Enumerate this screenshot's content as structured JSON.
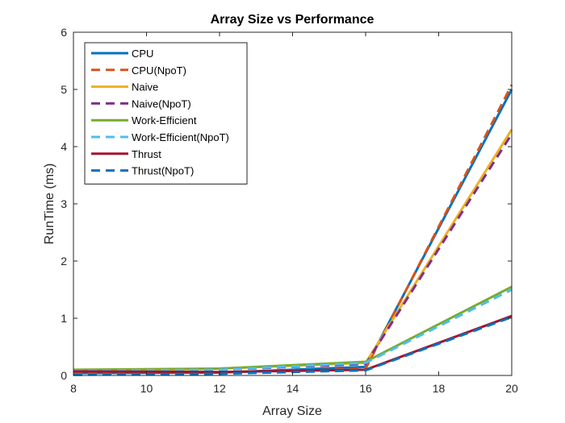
{
  "chart_data": {
    "type": "line",
    "title": "Array Size vs Performance",
    "xlabel": "Array Size",
    "ylabel": "RunTime (ms)",
    "xlim": [
      8,
      20
    ],
    "ylim": [
      0,
      6
    ],
    "xticks": [
      8,
      10,
      12,
      14,
      16,
      18,
      20
    ],
    "yticks": [
      0,
      1,
      2,
      3,
      4,
      5,
      6
    ],
    "grid": false,
    "legend_position": "top-left",
    "x": [
      8,
      12,
      16,
      20
    ],
    "series": [
      {
        "name": "CPU",
        "color": "#0072BD",
        "dash": "solid",
        "values": [
          0.04,
          0.05,
          0.15,
          5.0
        ]
      },
      {
        "name": "CPU(NpoT)",
        "color": "#D95319",
        "dash": "dashed",
        "values": [
          0.03,
          0.04,
          0.12,
          5.08
        ]
      },
      {
        "name": "Naive",
        "color": "#EDB120",
        "dash": "solid",
        "values": [
          0.08,
          0.12,
          0.22,
          4.3
        ]
      },
      {
        "name": "Naive(NpoT)",
        "color": "#7E2F8E",
        "dash": "dashed",
        "values": [
          0.07,
          0.1,
          0.2,
          4.22
        ]
      },
      {
        "name": "Work-Efficient",
        "color": "#77AC30",
        "dash": "solid",
        "values": [
          0.1,
          0.12,
          0.24,
          1.55
        ]
      },
      {
        "name": "Work-Efficient(NpoT)",
        "color": "#4DBEEE",
        "dash": "dashed",
        "values": [
          0.08,
          0.1,
          0.22,
          1.5
        ]
      },
      {
        "name": "Thrust",
        "color": "#A2142F",
        "dash": "solid",
        "values": [
          0.07,
          0.06,
          0.1,
          1.04
        ]
      },
      {
        "name": "Thrust(NpoT)",
        "color": "#0072BD",
        "dash": "dashed",
        "values": [
          0.01,
          0.03,
          0.09,
          1.02
        ]
      }
    ]
  }
}
